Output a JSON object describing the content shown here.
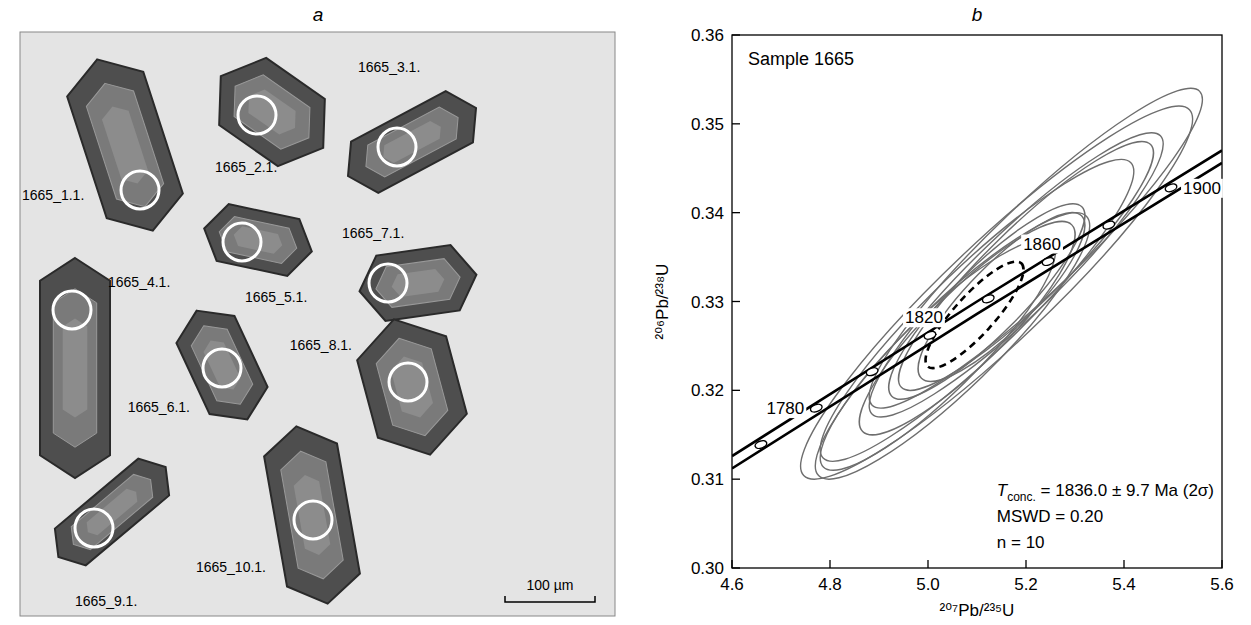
{
  "image_panel": {
    "panel_label": "a",
    "grain_labels": [
      "1665_1.1.",
      "1665_2.1.",
      "1665_3.1.",
      "1665_4.1.",
      "1665_5.1.",
      "1665_6.1.",
      "1665_7.1.",
      "1665_8.1.",
      "1665_9.1.",
      "1665_10.1."
    ],
    "scale_bar_label": "100 µm"
  },
  "chart_data": {
    "type": "concordia",
    "panel_label": "b",
    "title": "Sample 1665",
    "x_label": "²⁰⁷Pb/²³⁵U",
    "y_label": "²⁰⁶Pb/²³⁸U",
    "xlim": [
      4.6,
      5.6
    ],
    "ylim": [
      0.3,
      0.36
    ],
    "xticks": [
      4.6,
      4.8,
      {
        "value": 5,
        "label": "5.0"
      },
      5.2,
      5.4,
      5.6
    ],
    "yticks": [
      {
        "value": 0.3,
        "label": "0.30"
      },
      0.31,
      0.32,
      0.33,
      0.34,
      0.35,
      0.36
    ],
    "concordia_lines": [
      {
        "x": [
          4.6,
          5.1,
          5.6
        ],
        "y": [
          0.3112,
          0.3286,
          0.3456
        ],
        "color": "#000000"
      },
      {
        "x": [
          4.6,
          5.1,
          5.6
        ],
        "y": [
          0.3126,
          0.33,
          0.347
        ],
        "color": "#000000"
      }
    ],
    "age_markers": {
      "x": [
        4.659,
        4.772,
        4.886,
        5.004,
        5.123,
        5.245,
        5.369,
        5.496
      ],
      "y": [
        0.3139,
        0.318,
        0.3221,
        0.3262,
        0.3303,
        0.3345,
        0.3386,
        0.3428
      ],
      "labels": [
        null,
        1780,
        null,
        1820,
        null,
        1860,
        null,
        1900
      ]
    },
    "ellipses": {
      "color": "#6e6e6e",
      "x": [
        5.14,
        5.1,
        5.18,
        5.05,
        5.12,
        5.2,
        5.08,
        5.15,
        5.22,
        5.02
      ],
      "y": [
        0.331,
        0.329,
        0.333,
        0.325,
        0.33,
        0.334,
        0.327,
        0.3305,
        0.336,
        0.324
      ],
      "x_err": [
        0.4,
        0.32,
        0.3,
        0.28,
        0.2,
        0.26,
        0.22,
        0.17,
        0.34,
        0.24
      ],
      "y_err": [
        0.021,
        0.017,
        0.016,
        0.015,
        0.011,
        0.014,
        0.012,
        0.0095,
        0.018,
        0.013
      ],
      "rho": [
        0.93,
        0.92,
        0.92,
        0.9,
        0.88,
        0.91,
        0.88,
        0.85,
        0.93,
        0.89
      ]
    },
    "mean_ellipse": {
      "x": 5.095,
      "y": 0.3285,
      "x_err": 0.1,
      "y_err": 0.006,
      "rho": 0.85,
      "line_style": "dashed",
      "color": "#000000"
    },
    "annotations": [
      {
        "symbol": "T",
        "subscript": "conc.",
        "text": " = 1836.0 ± 9.7 Ma (2σ)"
      },
      {
        "text": "MSWD = 0.20"
      },
      {
        "text": "n = 10"
      }
    ]
  }
}
